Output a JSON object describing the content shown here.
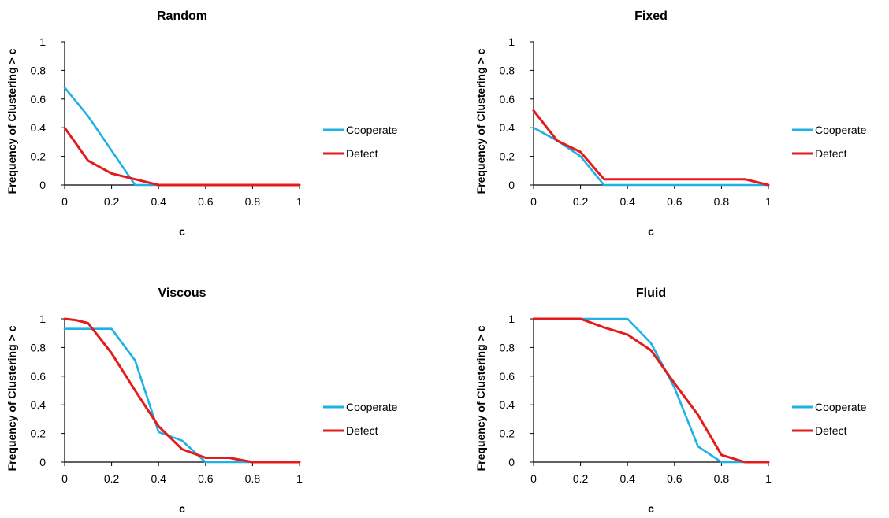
{
  "colors": {
    "cooperate": "#1EB1E6",
    "defect": "#E51A1A"
  },
  "chart_data": [
    {
      "type": "line",
      "title": "Random",
      "xlabel": "c",
      "ylabel": "Frequency of Clustering > c",
      "xlim": [
        0,
        1
      ],
      "ylim": [
        0,
        1
      ],
      "xticks": [
        "0",
        "0.2",
        "0.4",
        "0.6",
        "0.8",
        "1"
      ],
      "yticks": [
        "0",
        "0.2",
        "0.4",
        "0.6",
        "0.8",
        "1"
      ],
      "legend": "right",
      "series": [
        {
          "name": "Cooperate",
          "x": [
            0,
            0.1,
            0.2,
            0.3,
            0.4,
            1
          ],
          "y": [
            0.68,
            0.48,
            0.24,
            0.0,
            0.0,
            0.0
          ]
        },
        {
          "name": "Defect",
          "x": [
            0,
            0.1,
            0.2,
            0.3,
            0.4,
            1
          ],
          "y": [
            0.4,
            0.17,
            0.08,
            0.04,
            0.0,
            0.0
          ]
        }
      ]
    },
    {
      "type": "line",
      "title": "Fixed",
      "xlabel": "c",
      "ylabel": "Frequency of Clustering > c",
      "xlim": [
        0,
        1
      ],
      "ylim": [
        0,
        1
      ],
      "xticks": [
        "0",
        "0.2",
        "0.4",
        "0.6",
        "0.8",
        "1"
      ],
      "yticks": [
        "0",
        "0.2",
        "0.4",
        "0.6",
        "0.8",
        "1"
      ],
      "legend": "right",
      "series": [
        {
          "name": "Cooperate",
          "x": [
            0,
            0.1,
            0.2,
            0.3,
            1
          ],
          "y": [
            0.4,
            0.31,
            0.2,
            0.0,
            0.0
          ]
        },
        {
          "name": "Defect",
          "x": [
            0,
            0.1,
            0.2,
            0.3,
            0.9,
            1
          ],
          "y": [
            0.52,
            0.31,
            0.23,
            0.04,
            0.04,
            0.0
          ]
        }
      ]
    },
    {
      "type": "line",
      "title": "Viscous",
      "xlabel": "c",
      "ylabel": "Frequency of Clustering > c",
      "xlim": [
        0,
        1
      ],
      "ylim": [
        0,
        1
      ],
      "xticks": [
        "0",
        "0.2",
        "0.4",
        "0.6",
        "0.8",
        "1"
      ],
      "yticks": [
        "0",
        "0.2",
        "0.4",
        "0.6",
        "0.8",
        "1"
      ],
      "legend": "right",
      "series": [
        {
          "name": "Cooperate",
          "x": [
            0,
            0.1,
            0.2,
            0.3,
            0.4,
            0.5,
            0.6,
            0.7,
            0.8,
            1
          ],
          "y": [
            0.93,
            0.93,
            0.93,
            0.71,
            0.21,
            0.15,
            0.0,
            0.0,
            0.0,
            0.0
          ]
        },
        {
          "name": "Defect",
          "x": [
            0,
            0.05,
            0.1,
            0.2,
            0.3,
            0.4,
            0.5,
            0.6,
            0.7,
            0.8,
            1
          ],
          "y": [
            1.0,
            0.99,
            0.97,
            0.76,
            0.5,
            0.25,
            0.09,
            0.03,
            0.03,
            0.0,
            0.0
          ]
        }
      ]
    },
    {
      "type": "line",
      "title": "Fluid",
      "xlabel": "c",
      "ylabel": "Frequency of Clustering > c",
      "xlim": [
        0,
        1
      ],
      "ylim": [
        0,
        1
      ],
      "xticks": [
        "0",
        "0.2",
        "0.4",
        "0.6",
        "0.8",
        "1"
      ],
      "yticks": [
        "0",
        "0.2",
        "0.4",
        "0.6",
        "0.8",
        "1"
      ],
      "legend": "right",
      "series": [
        {
          "name": "Cooperate",
          "x": [
            0,
            0.2,
            0.3,
            0.4,
            0.5,
            0.6,
            0.7,
            0.8,
            1
          ],
          "y": [
            1.0,
            1.0,
            1.0,
            1.0,
            0.83,
            0.52,
            0.11,
            0.0,
            0.0
          ]
        },
        {
          "name": "Defect",
          "x": [
            0,
            0.2,
            0.3,
            0.4,
            0.5,
            0.6,
            0.7,
            0.8,
            0.9,
            1
          ],
          "y": [
            1.0,
            1.0,
            0.94,
            0.89,
            0.78,
            0.55,
            0.33,
            0.05,
            0.0,
            0.0
          ]
        }
      ]
    }
  ]
}
